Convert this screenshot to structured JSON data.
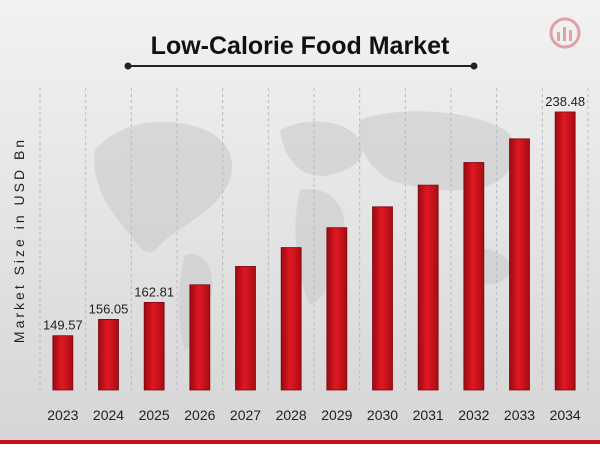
{
  "colors": {
    "bar": "#d0101a",
    "bar_dark": "#8a0a10",
    "background": "#dcdcdc",
    "footer_bar": "#c8101a",
    "title": "#111111"
  },
  "logo_icon": "chart-logo-icon",
  "chart_data": {
    "type": "bar",
    "title": "Low-Calorie Food Market",
    "xlabel": "",
    "ylabel": "Market Size in USD Bn",
    "categories": [
      "2023",
      "2024",
      "2025",
      "2026",
      "2027",
      "2028",
      "2029",
      "2030",
      "2031",
      "2032",
      "2033",
      "2034"
    ],
    "values": [
      149.57,
      156.05,
      162.81,
      169.8,
      177.1,
      184.6,
      192.5,
      200.8,
      209.4,
      218.4,
      227.8,
      238.48
    ],
    "data_labels": [
      "149.57",
      "156.05",
      "162.81",
      "",
      "",
      "",
      "",
      "",
      "",
      "",
      "",
      "238.48"
    ],
    "ylim": [
      128,
      248
    ],
    "grid": "vertical dashed",
    "legend": "none"
  }
}
